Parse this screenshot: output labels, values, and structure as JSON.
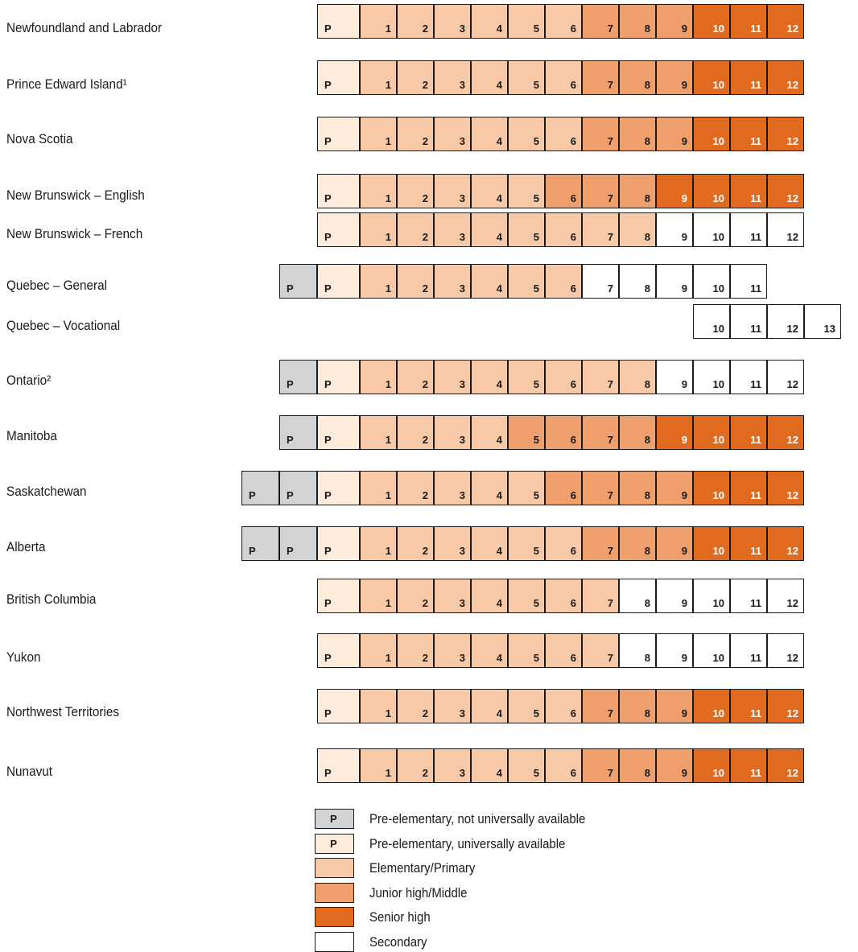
{
  "categories": {
    "pna": {
      "color": "#d2d3d5",
      "label": "Pre-elementary, not universally available",
      "symbol": "P"
    },
    "pua": {
      "color": "#fdebdc",
      "label": "Pre-elementary, universally available",
      "symbol": "P"
    },
    "elem": {
      "color": "#f8c9a6",
      "label": "Elementary/Primary"
    },
    "junior": {
      "color": "#ef9f6b",
      "label": "Junior high/Middle"
    },
    "senior": {
      "color": "#e06b1f",
      "label": "Senior high"
    },
    "secondary": {
      "color": "#ffffff",
      "label": "Secondary"
    }
  },
  "legend_order": [
    "pna",
    "pua",
    "elem",
    "junior",
    "senior",
    "secondary"
  ],
  "rows": [
    {
      "name": "Newfoundland and Labrador",
      "prek_na": 0,
      "elem_to": 6,
      "junior_to": 9,
      "senior_to": 12,
      "secondary_to": 0
    },
    {
      "name": "Prince Edward Island¹",
      "prek_na": 0,
      "elem_to": 6,
      "junior_to": 9,
      "senior_to": 12,
      "secondary_to": 0
    },
    {
      "name": "Nova Scotia",
      "prek_na": 0,
      "elem_to": 6,
      "junior_to": 9,
      "senior_to": 12,
      "secondary_to": 0
    },
    {
      "name": "New Brunswick – English",
      "prek_na": 0,
      "elem_to": 5,
      "junior_to": 8,
      "senior_to": 12,
      "secondary_to": 0
    },
    {
      "name": "New Brunswick – French",
      "prek_na": 0,
      "elem_to": 8,
      "junior_to": 8,
      "senior_to": 8,
      "secondary_to": 12
    },
    {
      "name": "Quebec – General",
      "prek_na": 1,
      "elem_to": 6,
      "junior_to": 6,
      "senior_to": 6,
      "secondary_to": 11
    },
    {
      "name": "Quebec – Vocational",
      "prek_na": 0,
      "no_pre": true,
      "start": 10,
      "elem_to": 9,
      "junior_to": 9,
      "senior_to": 9,
      "secondary_to": 13
    },
    {
      "name": "Ontario²",
      "prek_na": 1,
      "elem_to": 8,
      "junior_to": 8,
      "senior_to": 8,
      "secondary_to": 12
    },
    {
      "name": "Manitoba",
      "prek_na": 1,
      "elem_to": 4,
      "junior_to": 8,
      "senior_to": 12,
      "secondary_to": 0
    },
    {
      "name": "Saskatchewan",
      "prek_na": 2,
      "elem_to": 5,
      "junior_to": 9,
      "senior_to": 12,
      "secondary_to": 0
    },
    {
      "name": "Alberta",
      "prek_na": 2,
      "elem_to": 6,
      "junior_to": 9,
      "senior_to": 12,
      "secondary_to": 0
    },
    {
      "name": "British Columbia",
      "prek_na": 0,
      "elem_to": 7,
      "junior_to": 7,
      "senior_to": 7,
      "secondary_to": 12
    },
    {
      "name": "Yukon",
      "prek_na": 0,
      "elem_to": 7,
      "junior_to": 7,
      "senior_to": 7,
      "secondary_to": 12
    },
    {
      "name": "Northwest Territories",
      "prek_na": 0,
      "elem_to": 6,
      "junior_to": 9,
      "senior_to": 12,
      "secondary_to": 0
    },
    {
      "name": "Nunavut",
      "prek_na": 0,
      "elem_to": 6,
      "junior_to": 9,
      "senior_to": 12,
      "secondary_to": 0
    }
  ]
}
